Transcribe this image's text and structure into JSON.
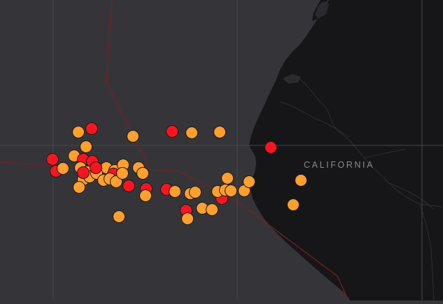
{
  "map": {
    "region_label": "CALIFORNIA",
    "colors": {
      "ocean": "#353539",
      "land": "#161618",
      "grid": "#46464b",
      "boundary": "#7a1d22",
      "coast": "#2a2a2d"
    },
    "marker_colors": {
      "orange": "#ff9f2e",
      "red": "#f81421"
    },
    "markers": [
      {
        "id": 1,
        "color": "orange"
      },
      {
        "id": 2,
        "color": "red"
      },
      {
        "id": 3,
        "color": "orange"
      },
      {
        "id": 4,
        "color": "red"
      },
      {
        "id": 5,
        "color": "orange"
      },
      {
        "id": 6,
        "color": "orange"
      },
      {
        "id": 7,
        "color": "red"
      },
      {
        "id": 8,
        "color": "orange"
      },
      {
        "id": 9,
        "color": "red"
      },
      {
        "id": 10,
        "color": "red"
      },
      {
        "id": 11,
        "color": "orange"
      },
      {
        "id": 12,
        "color": "orange"
      },
      {
        "id": 13,
        "color": "red"
      },
      {
        "id": 14,
        "color": "red"
      },
      {
        "id": 15,
        "color": "orange"
      },
      {
        "id": 16,
        "color": "orange"
      },
      {
        "id": 17,
        "color": "orange"
      },
      {
        "id": 18,
        "color": "orange"
      },
      {
        "id": 19,
        "color": "orange"
      },
      {
        "id": 20,
        "color": "red"
      },
      {
        "id": 21,
        "color": "orange"
      },
      {
        "id": 22,
        "color": "orange"
      },
      {
        "id": 23,
        "color": "orange"
      },
      {
        "id": 24,
        "color": "orange"
      },
      {
        "id": 25,
        "color": "orange"
      },
      {
        "id": 26,
        "color": "orange"
      },
      {
        "id": 27,
        "color": "orange"
      },
      {
        "id": 28,
        "color": "red"
      },
      {
        "id": 29,
        "color": "orange"
      },
      {
        "id": 30,
        "color": "orange"
      },
      {
        "id": 31,
        "color": "orange"
      },
      {
        "id": 32,
        "color": "red"
      },
      {
        "id": 33,
        "color": "red"
      },
      {
        "id": 34,
        "color": "orange"
      },
      {
        "id": 35,
        "color": "orange"
      },
      {
        "id": 36,
        "color": "red"
      },
      {
        "id": 37,
        "color": "orange"
      },
      {
        "id": 38,
        "color": "orange"
      },
      {
        "id": 39,
        "color": "orange"
      },
      {
        "id": 40,
        "color": "red"
      },
      {
        "id": 41,
        "color": "orange"
      },
      {
        "id": 42,
        "color": "orange"
      },
      {
        "id": 43,
        "color": "orange"
      },
      {
        "id": 44,
        "color": "red"
      },
      {
        "id": 45,
        "color": "orange"
      },
      {
        "id": 46,
        "color": "orange"
      },
      {
        "id": 47,
        "color": "orange"
      },
      {
        "id": 48,
        "color": "orange"
      },
      {
        "id": 49,
        "color": "orange"
      },
      {
        "id": 50,
        "color": "orange"
      },
      {
        "id": 51,
        "color": "orange"
      },
      {
        "id": 52,
        "color": "red"
      },
      {
        "id": 53,
        "color": "orange"
      },
      {
        "id": 54,
        "color": "orange"
      }
    ]
  }
}
